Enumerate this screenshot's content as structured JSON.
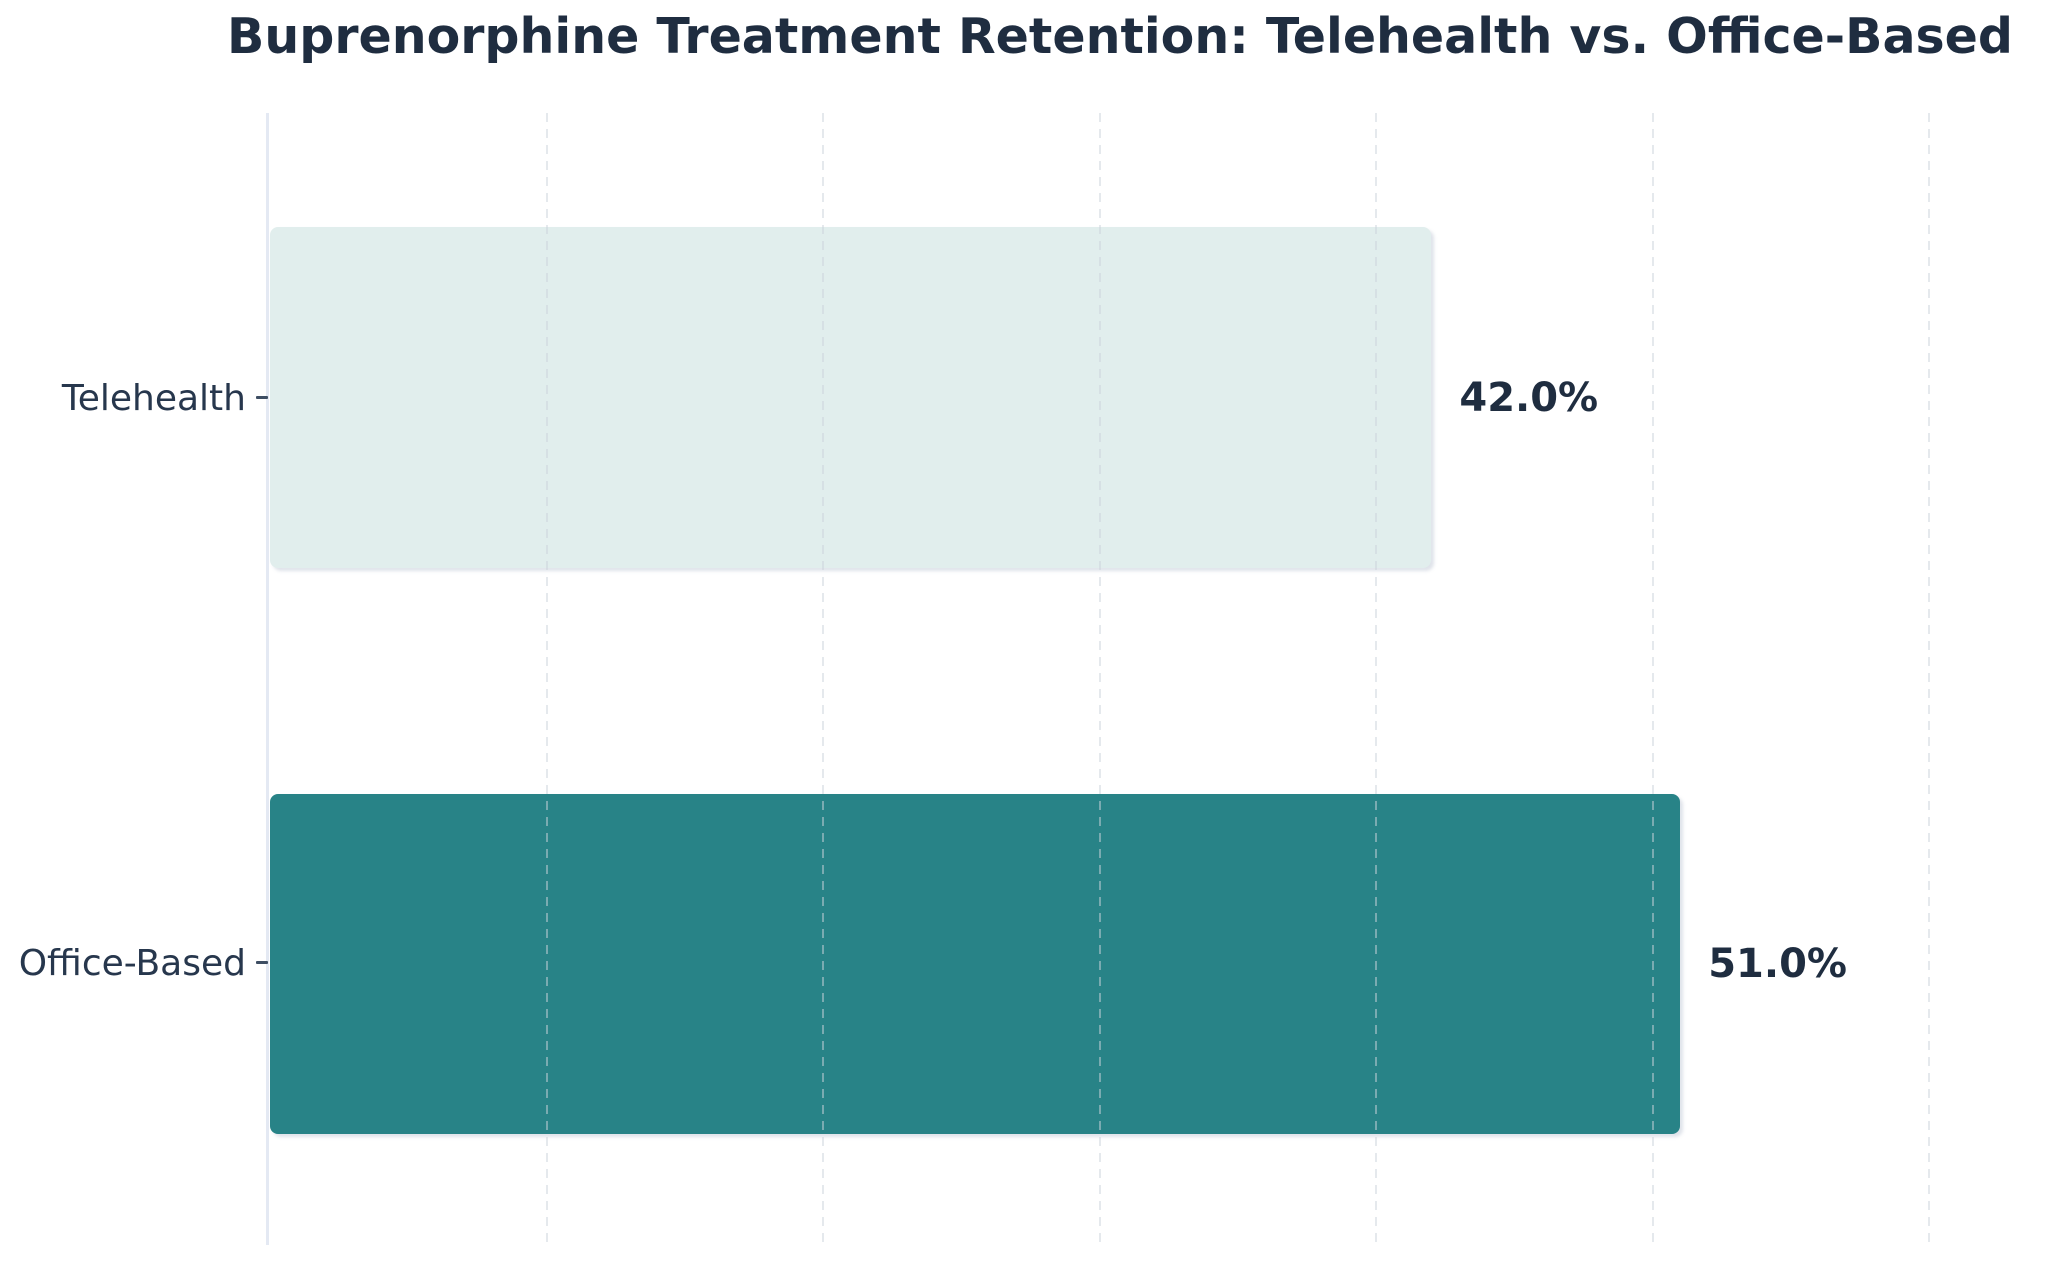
{
  "chart_data": {
    "type": "bar",
    "orientation": "horizontal",
    "title": "Buprenorphine Treatment Retention: Telehealth vs. Office-Based",
    "categories": [
      "Telehealth",
      "Office-Based"
    ],
    "values": [
      42.0,
      51.0
    ],
    "value_labels": [
      "42.0%",
      "51.0%"
    ],
    "unit": "%",
    "xlabel": "",
    "ylabel": "",
    "xlim": [
      0,
      64.3
    ],
    "gridline_values": [
      10,
      20,
      30,
      40,
      50,
      60
    ],
    "grid_style": "dashed-vertical",
    "legend": "none",
    "bar_colors": [
      "#e1eeed",
      "#288387"
    ]
  },
  "colors": {
    "background": "#ffffff",
    "title_text": "#1f2d40",
    "category_text": "#27374d",
    "value_text": "#1f2d40",
    "axis_line": "#e4e9f3",
    "gridline": "#cbd3db",
    "tick": "#3e4e63",
    "bar_telehealth": "#e1eeed",
    "bar_office": "#288387"
  }
}
